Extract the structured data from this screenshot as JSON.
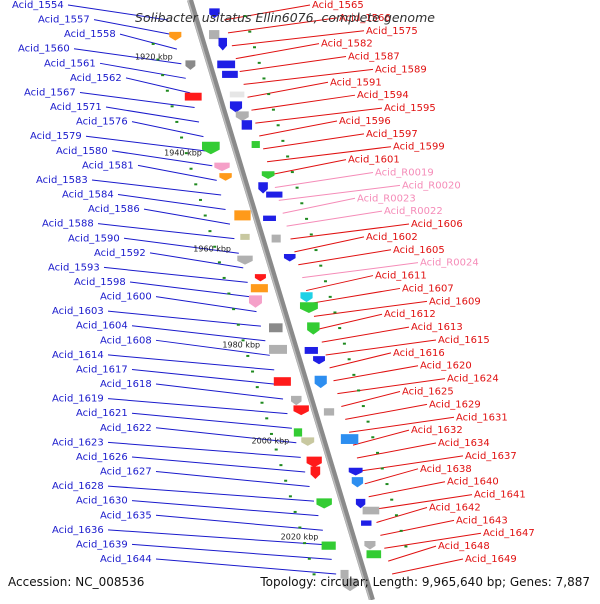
{
  "title": "Solibacter usitatus Ellin6076, complete genome",
  "footer": {
    "accession": "Accession: NC_008536",
    "summary": "Topology: circular; Length: 9,965,640 bp; Genes: 7,887"
  },
  "colors": {
    "left_label": "#1a1acc",
    "right_label": "#e01010",
    "rna_label": "#f58cb8",
    "backbone": "#8a8a8a",
    "tick": "#1f8a1f"
  },
  "scale_marks": [
    {
      "label": "1920 kbp",
      "t": 0.085
    },
    {
      "label": "1940 kbp",
      "t": 0.245
    },
    {
      "label": "1960 kbp",
      "t": 0.405
    },
    {
      "label": "1980 kbp",
      "t": 0.565
    },
    {
      "label": "2000 kbp",
      "t": 0.725
    },
    {
      "label": "2020 kbp",
      "t": 0.885
    }
  ],
  "left_labels": [
    "Acid_1554",
    "Acid_1557",
    "Acid_1558",
    "Acid_1560",
    "Acid_1561",
    "Acid_1562",
    "Acid_1567",
    "Acid_1571",
    "Acid_1576",
    "Acid_1579",
    "Acid_1580",
    "Acid_1581",
    "Acid_1583",
    "Acid_1584",
    "Acid_1586",
    "Acid_1588",
    "Acid_1590",
    "Acid_1592",
    "Acid_1593",
    "Acid_1598",
    "Acid_1600",
    "Acid_1603",
    "Acid_1604",
    "Acid_1608",
    "Acid_1614",
    "Acid_1617",
    "Acid_1618",
    "Acid_1619",
    "Acid_1621",
    "Acid_1622",
    "Acid_1623",
    "Acid_1626",
    "Acid_1627",
    "Acid_1628",
    "Acid_1630",
    "Acid_1635",
    "Acid_1636",
    "Acid_1639",
    "Acid_1644"
  ],
  "right_labels": [
    "Acid_1565",
    "Acid_1566",
    "Acid_1575",
    "Acid_1582",
    "Acid_1587",
    "Acid_1589",
    "Acid_1591",
    "Acid_1594",
    "Acid_1595",
    "Acid_1596",
    "Acid_1597",
    "Acid_1599",
    "Acid_1601",
    "Acid_R0019",
    "Acid_R0020",
    "Acid_R0023",
    "Acid_R0022",
    "Acid_1606",
    "Acid_1602",
    "Acid_1605",
    "Acid_R0024",
    "Acid_1611",
    "Acid_1607",
    "Acid_1609",
    "Acid_1612",
    "Acid_1613",
    "Acid_1615",
    "Acid_1616",
    "Acid_1620",
    "Acid_1624",
    "Acid_1625",
    "Acid_1629",
    "Acid_1631",
    "Acid_1632",
    "Acid_1634",
    "Acid_1637",
    "Acid_1638",
    "Acid_1640",
    "Acid_1641",
    "Acid_1642",
    "Acid_1643",
    "Acid_1647",
    "Acid_1648",
    "Acid_1649"
  ]
}
